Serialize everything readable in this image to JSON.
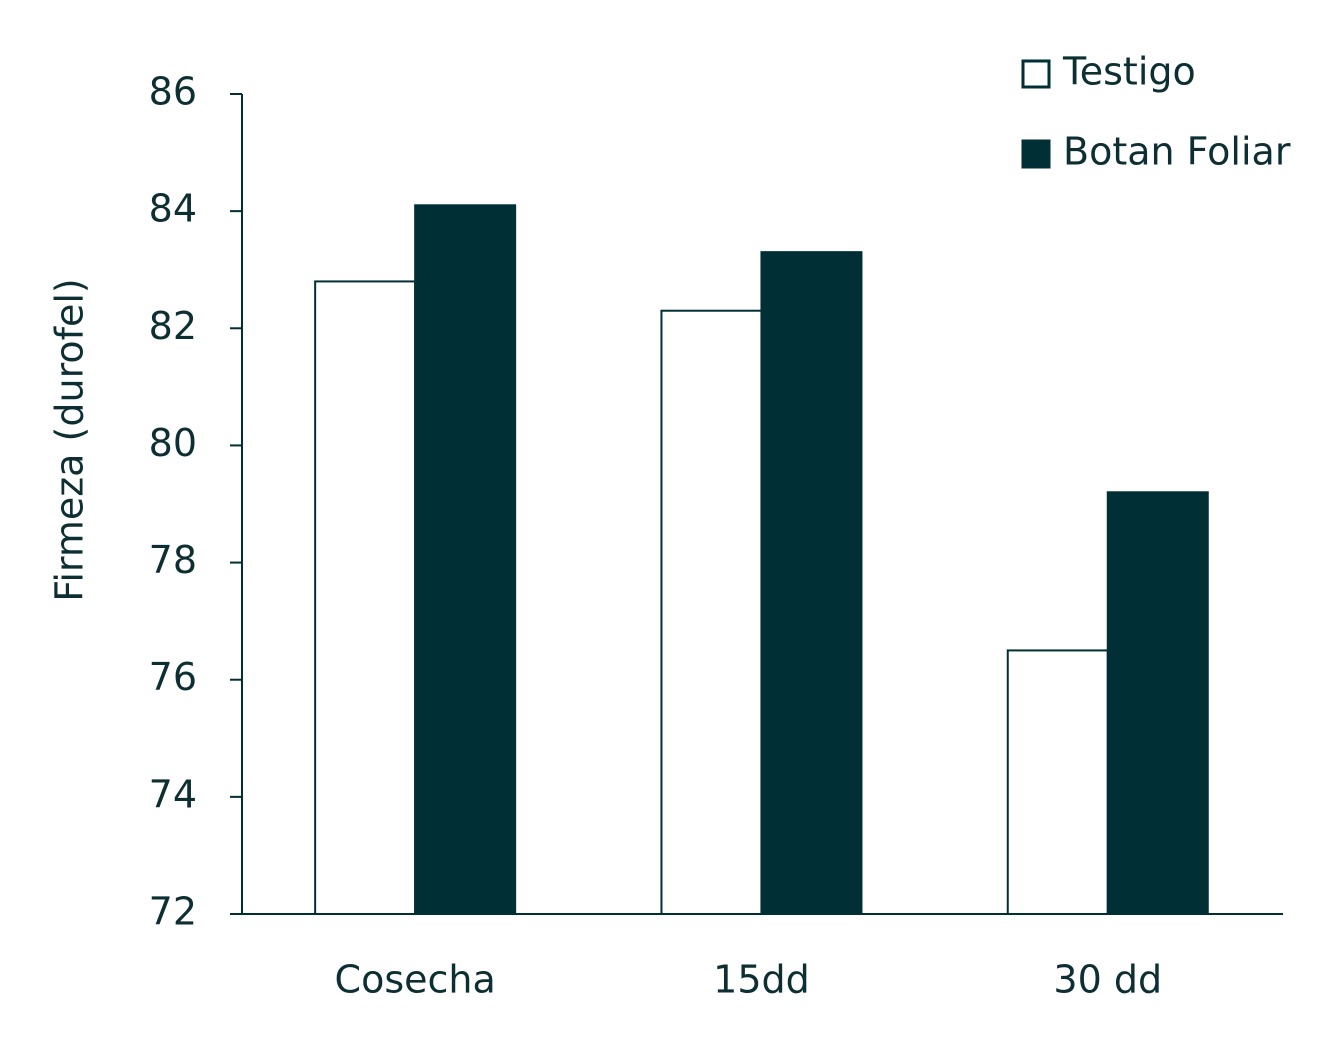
{
  "chart_data": {
    "type": "bar",
    "y_label": "Firmeza (durofel)",
    "categories": [
      "Cosecha",
      "15dd",
      "30 dd"
    ],
    "series": [
      {
        "name": "Testigo",
        "color": "#ffffff",
        "values": [
          82.8,
          82.3,
          76.5
        ]
      },
      {
        "name": "Botan Foliar",
        "color": "#002f36",
        "values": [
          84.1,
          83.3,
          79.2
        ]
      }
    ],
    "edgecolor": "#002f36",
    "ylim": [
      72,
      86
    ],
    "yticks": [
      72,
      74,
      76,
      78,
      80,
      82,
      84,
      86
    ],
    "grid": false,
    "legend": "upper right"
  }
}
